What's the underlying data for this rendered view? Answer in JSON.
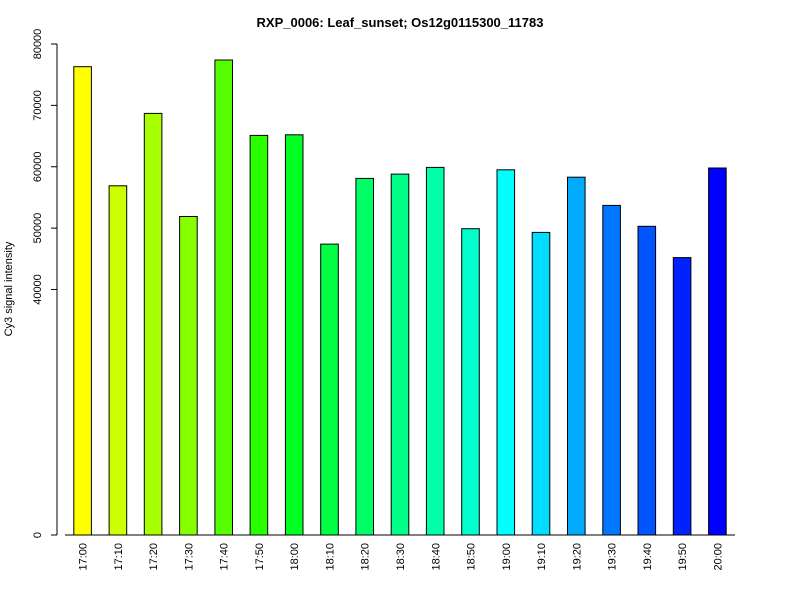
{
  "chart_data": {
    "type": "bar",
    "title": "RXP_0006: Leaf_sunset; Os12g0115300_11783",
    "xlabel": "",
    "ylabel": "Cy3 signal intensity",
    "ylim": [
      0,
      80000
    ],
    "yticks": [
      0,
      40000,
      50000,
      60000,
      70000,
      80000
    ],
    "ytick_labels": [
      "0",
      "40000",
      "50000",
      "60000",
      "70000",
      "80000"
    ],
    "categories": [
      "17:00",
      "17:10",
      "17:20",
      "17:30",
      "17:40",
      "17:50",
      "18:00",
      "18:10",
      "18:20",
      "18:30",
      "18:40",
      "18:50",
      "19:00",
      "19:10",
      "19:20",
      "19:30",
      "19:40",
      "19:50",
      "20:00"
    ],
    "values": [
      76300,
      56900,
      68700,
      51900,
      77400,
      65100,
      65200,
      47400,
      58100,
      58800,
      59900,
      49900,
      59500,
      49300,
      58300,
      53700,
      50300,
      45200,
      59800
    ],
    "colors": [
      "#ffff00",
      "#ccff00",
      "#a8ff00",
      "#88ff00",
      "#55ff00",
      "#2aff00",
      "#00ff22",
      "#00ff44",
      "#00ff66",
      "#00ff88",
      "#00ffaa",
      "#00ffcc",
      "#00ffff",
      "#00ddff",
      "#00aaff",
      "#0077ff",
      "#0055ff",
      "#0022ff",
      "#0000ff"
    ],
    "grid": false,
    "legend": "none"
  }
}
